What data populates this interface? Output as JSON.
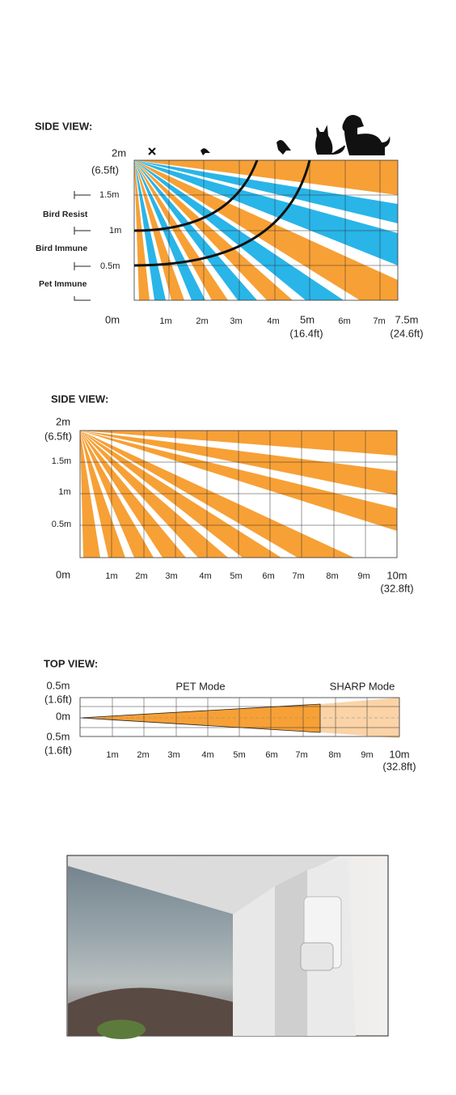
{
  "diagrams": [
    {
      "title": "SIDE VIEW:",
      "y_labels": [
        "2m",
        "(6.5ft)",
        "1.5m",
        "1m",
        "0.5m",
        "0m"
      ],
      "zone_labels": [
        "Bird Resist",
        "Bird Immune",
        "Pet Immune"
      ],
      "x_labels": [
        "1m",
        "2m",
        "3m",
        "4m",
        "5m",
        "(16.4ft)",
        "6m",
        "7m",
        "7.5m",
        "(24.6ft)"
      ]
    },
    {
      "title": "SIDE VIEW:",
      "y_labels": [
        "2m",
        "(6.5ft)",
        "1.5m",
        "1m",
        "0.5m",
        "0m"
      ],
      "x_labels": [
        "1m",
        "2m",
        "3m",
        "4m",
        "5m",
        "6m",
        "7m",
        "8m",
        "9m",
        "10m",
        "(32.8ft)"
      ]
    },
    {
      "title": "TOP VIEW:",
      "mode_labels": [
        "PET Mode",
        "SHARP Mode"
      ],
      "y_labels": [
        "0.5m",
        "(1.6ft)",
        "0m",
        "0.5m",
        "(1.6ft)"
      ],
      "x_labels": [
        "1m",
        "2m",
        "3m",
        "4m",
        "5m",
        "6m",
        "7m",
        "8m",
        "9m",
        "10m",
        "(32.8ft)"
      ]
    }
  ]
}
